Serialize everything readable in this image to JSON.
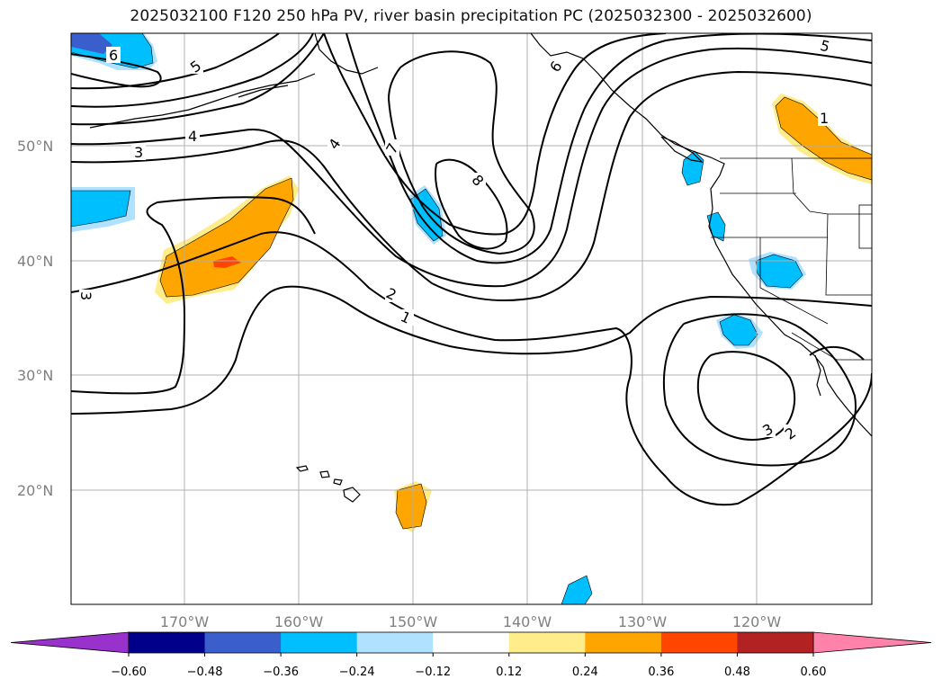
{
  "title": "2025032100 F120 250 hPa PV, river basin precipitation PC (2025032300 - 2025032600)",
  "map": {
    "lon_range": [
      -180,
      -110
    ],
    "lat_range": [
      10,
      60
    ],
    "lat_labels": [
      "50°N",
      "40°N",
      "30°N",
      "20°N"
    ],
    "lon_labels": [
      "170°W",
      "160°W",
      "150°W",
      "140°W",
      "130°W",
      "120°W"
    ],
    "gridlines": true,
    "pv_contour_labels": [
      "6",
      "5",
      "4",
      "3",
      "7",
      "8",
      "2",
      "1",
      "6",
      "5",
      "1",
      "3",
      "2",
      "3"
    ]
  },
  "colorbar": {
    "ticks": [
      "−0.60",
      "−0.48",
      "−0.36",
      "−0.24",
      "−0.12",
      "0.12",
      "0.24",
      "0.36",
      "0.48",
      "0.60"
    ],
    "colors": [
      "#9932cc",
      "#00008b",
      "#3a5fcd",
      "#00bfff",
      "#b0e2ff",
      "#ffffff",
      "#ffec8b",
      "#ffa500",
      "#ff4500",
      "#b22222",
      "#ff82ab"
    ],
    "extend": "both"
  }
}
